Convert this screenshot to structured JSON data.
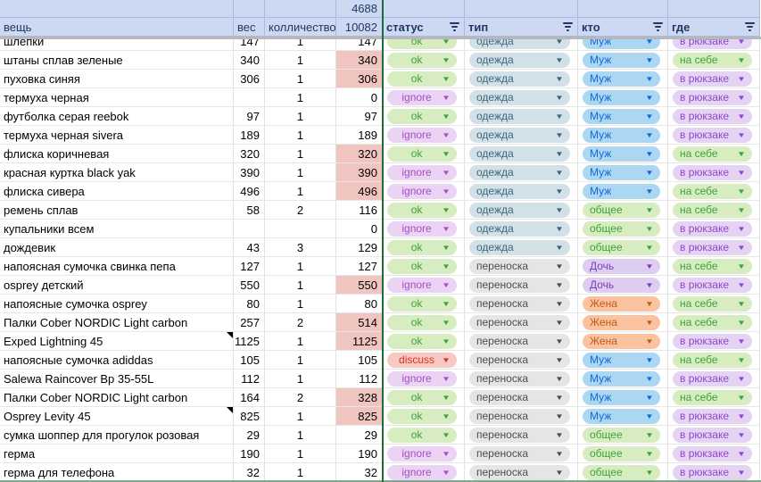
{
  "table": {
    "totals": {
      "selection_sum": "4688",
      "grand_total": "10082"
    },
    "columns": [
      {
        "label": "вещь",
        "filter": false,
        "align": "left"
      },
      {
        "label": "вес",
        "filter": false,
        "align": "left"
      },
      {
        "label": "колличество",
        "filter": false,
        "align": "left"
      },
      {
        "label": "10082",
        "filter": false,
        "align": "right"
      },
      {
        "label": "статус",
        "filter": true,
        "align": "left"
      },
      {
        "label": "тип",
        "filter": true,
        "align": "left"
      },
      {
        "label": "кто",
        "filter": true,
        "align": "left"
      },
      {
        "label": "где",
        "filter": true,
        "align": "left"
      }
    ],
    "rows": [
      {
        "name": "шлепки",
        "weight": "147",
        "qty": "1",
        "total": "147",
        "hl": false,
        "status": "ok",
        "type": "одежда",
        "who": "Муж",
        "where": "в рюкзаке",
        "clipped": true,
        "note": false
      },
      {
        "name": "штаны сплав зеленые",
        "weight": "340",
        "qty": "1",
        "total": "340",
        "hl": true,
        "status": "ok",
        "type": "одежда",
        "who": "Муж",
        "where": "на себе",
        "clipped": false,
        "note": false
      },
      {
        "name": "пуховка синяя",
        "weight": "306",
        "qty": "1",
        "total": "306",
        "hl": true,
        "status": "ok",
        "type": "одежда",
        "who": "Муж",
        "where": "в рюкзаке",
        "clipped": false,
        "note": false
      },
      {
        "name": "термуха черная",
        "weight": "",
        "qty": "1",
        "total": "0",
        "hl": false,
        "status": "ignore",
        "type": "одежда",
        "who": "Муж",
        "where": "в рюкзаке",
        "clipped": false,
        "note": false
      },
      {
        "name": "футболка серая reebok",
        "weight": "97",
        "qty": "1",
        "total": "97",
        "hl": false,
        "status": "ok",
        "type": "одежда",
        "who": "Муж",
        "where": "в рюкзаке",
        "clipped": false,
        "note": false
      },
      {
        "name": "термуха черная sivera",
        "weight": "189",
        "qty": "1",
        "total": "189",
        "hl": false,
        "status": "ignore",
        "type": "одежда",
        "who": "Муж",
        "where": "в рюкзаке",
        "clipped": false,
        "note": false
      },
      {
        "name": "флиска коричневая",
        "weight": "320",
        "qty": "1",
        "total": "320",
        "hl": true,
        "status": "ok",
        "type": "одежда",
        "who": "Муж",
        "where": "на себе",
        "clipped": false,
        "note": false
      },
      {
        "name": "красная куртка black yak",
        "weight": "390",
        "qty": "1",
        "total": "390",
        "hl": true,
        "status": "ignore",
        "type": "одежда",
        "who": "Муж",
        "where": "в рюкзаке",
        "clipped": false,
        "note": false
      },
      {
        "name": "флиска сивера",
        "weight": "496",
        "qty": "1",
        "total": "496",
        "hl": true,
        "status": "ignore",
        "type": "одежда",
        "who": "Муж",
        "where": "на себе",
        "clipped": false,
        "note": false
      },
      {
        "name": "ремень сплав",
        "weight": "58",
        "qty": "2",
        "total": "116",
        "hl": false,
        "status": "ok",
        "type": "одежда",
        "who": "общее",
        "where": "на себе",
        "clipped": false,
        "note": false
      },
      {
        "name": "купальники всем",
        "weight": "",
        "qty": "",
        "total": "0",
        "hl": false,
        "status": "ignore",
        "type": "одежда",
        "who": "общее",
        "where": "в рюкзаке",
        "clipped": false,
        "note": false
      },
      {
        "name": "дождевик",
        "weight": "43",
        "qty": "3",
        "total": "129",
        "hl": false,
        "status": "ok",
        "type": "одежда",
        "who": "общее",
        "where": "в рюкзаке",
        "clipped": false,
        "note": false
      },
      {
        "name": "напоясная сумочка свинка пепа",
        "weight": "127",
        "qty": "1",
        "total": "127",
        "hl": false,
        "status": "ok",
        "type": "переноска",
        "who": "Дочь",
        "where": "на себе",
        "clipped": false,
        "note": false
      },
      {
        "name": "osprey детский",
        "weight": "550",
        "qty": "1",
        "total": "550",
        "hl": true,
        "status": "ignore",
        "type": "переноска",
        "who": "Дочь",
        "where": "в рюкзаке",
        "clipped": false,
        "note": false
      },
      {
        "name": "напоясные сумочка osprey",
        "weight": "80",
        "qty": "1",
        "total": "80",
        "hl": false,
        "status": "ok",
        "type": "переноска",
        "who": "Жена",
        "where": "на себе",
        "clipped": false,
        "note": false
      },
      {
        "name": "Палки  Cober NORDIC Light carbon",
        "weight": "257",
        "qty": "2",
        "total": "514",
        "hl": true,
        "status": "ok",
        "type": "переноска",
        "who": "Жена",
        "where": "на себе",
        "clipped": false,
        "note": false
      },
      {
        "name": "Exped Lightning 45",
        "weight": "1125",
        "qty": "1",
        "total": "1125",
        "hl": true,
        "status": "ok",
        "type": "переноска",
        "who": "Жена",
        "where": "в рюкзаке",
        "clipped": false,
        "note": true
      },
      {
        "name": "напоясные сумочка adiddas",
        "weight": "105",
        "qty": "1",
        "total": "105",
        "hl": false,
        "status": "discuss",
        "type": "переноска",
        "who": "Муж",
        "where": "на себе",
        "clipped": false,
        "note": false
      },
      {
        "name": "Salewa Raincover Bp 35-55L",
        "weight": "112",
        "qty": "1",
        "total": "112",
        "hl": false,
        "status": "ignore",
        "type": "переноска",
        "who": "Муж",
        "where": "в рюкзаке",
        "clipped": false,
        "note": false
      },
      {
        "name": "Палки  Cober NORDIC Light carbon",
        "weight": "164",
        "qty": "2",
        "total": "328",
        "hl": true,
        "status": "ok",
        "type": "переноска",
        "who": "Муж",
        "where": "на себе",
        "clipped": false,
        "note": false
      },
      {
        "name": "Osprey Levity 45",
        "weight": "825",
        "qty": "1",
        "total": "825",
        "hl": true,
        "status": "ok",
        "type": "переноска",
        "who": "Муж",
        "where": "в рюкзаке",
        "clipped": false,
        "note": true
      },
      {
        "name": "сумка шоппер для прогулок розовая",
        "weight": "29",
        "qty": "1",
        "total": "29",
        "hl": false,
        "status": "ok",
        "type": "переноска",
        "who": "общее",
        "where": "в рюкзаке",
        "clipped": false,
        "note": false
      },
      {
        "name": "герма",
        "weight": "190",
        "qty": "1",
        "total": "190",
        "hl": false,
        "status": "ignore",
        "type": "переноска",
        "who": "общее",
        "where": "в рюкзаке",
        "clipped": false,
        "note": false
      },
      {
        "name": "герма для телефона",
        "weight": "32",
        "qty": "1",
        "total": "32",
        "hl": false,
        "status": "ignore",
        "type": "переноска",
        "who": "общее",
        "where": "в рюкзаке",
        "clipped": false,
        "note": false
      }
    ]
  },
  "chip_styles": {
    "ok": {
      "bg": "#d7ecc0",
      "text": "#3da33d"
    },
    "ignore": {
      "bg": "#ead3f3",
      "text": "#a64dc8"
    },
    "discuss": {
      "bg": "#f8c9c2",
      "text": "#d93025"
    },
    "одежда": {
      "bg": "#d2e0e8",
      "text": "#3f657a"
    },
    "переноска": {
      "bg": "#e5e5e5",
      "text": "#4d4d4d"
    },
    "Муж": {
      "bg": "#abd7f3",
      "text": "#1668d6"
    },
    "Дочь": {
      "bg": "#dfccf1",
      "text": "#7a3fb8"
    },
    "Жена": {
      "bg": "#fac29e",
      "text": "#c05c17"
    },
    "общее": {
      "bg": "#d7ecc0",
      "text": "#3da33d"
    },
    "в рюкзаке": {
      "bg": "#e4d3f3",
      "text": "#9146c9"
    },
    "на себе": {
      "bg": "#d7ecc0",
      "text": "#3da33d"
    }
  },
  "colors": {
    "header_bg": "#cdd9f2",
    "header_text": "#1f3864",
    "highlight_cell_bg": "#f0c5c0",
    "accent_border": "#1c6b3c",
    "gridline": "#e2e2e2",
    "freeze_bar": "#b7b7b7"
  },
  "icons": {
    "dropdown_arrow": "▼",
    "filter_icon": "filter-lines"
  }
}
